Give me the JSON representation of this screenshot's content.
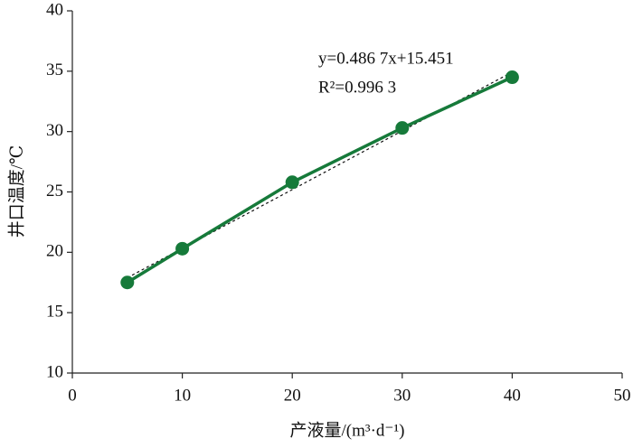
{
  "chart_data": {
    "type": "line",
    "x_label": "产液量/(m³·d⁻¹)",
    "y_label": "井口温度/℃",
    "annotations": [
      "y=0.486 7x+15.451",
      "R²=0.996 3"
    ],
    "x": [
      5,
      10,
      20,
      30,
      40
    ],
    "series": [
      {
        "color": "#167a3a",
        "values": [
          17.5,
          20.3,
          25.8,
          30.3,
          34.5
        ]
      }
    ],
    "xlim": [
      0,
      50
    ],
    "xticks": [
      0,
      10,
      20,
      30,
      40,
      50
    ],
    "ylim": [
      10,
      40
    ],
    "yticks": [
      10,
      15,
      20,
      25,
      30,
      35,
      40
    ],
    "trendline": true,
    "grid": false
  }
}
